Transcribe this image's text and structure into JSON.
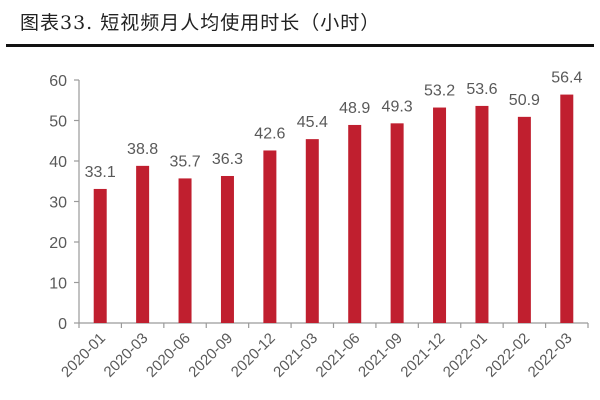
{
  "header": {
    "title": "图表33.  短视频月人均使用时长（小时）"
  },
  "colors": {
    "bar": "#C01F2F",
    "axis": "#9A9A9A",
    "text": "#595959"
  },
  "chart_data": {
    "type": "bar",
    "title": "图表33. 短视频月人均使用时长（小时）",
    "xlabel": "",
    "ylabel": "",
    "ylim": [
      0,
      60
    ],
    "yticks": [
      0,
      10,
      20,
      30,
      40,
      50,
      60
    ],
    "grid": false,
    "legend": null,
    "categories": [
      "2020-01",
      "2020-03",
      "2020-06",
      "2020-09",
      "2020-12",
      "2021-03",
      "2021-06",
      "2021-09",
      "2021-12",
      "2022-01",
      "2022-02",
      "2022-03"
    ],
    "values": [
      33.1,
      38.8,
      35.7,
      36.3,
      42.6,
      45.4,
      48.9,
      49.3,
      53.2,
      53.6,
      50.9,
      56.4
    ],
    "data_labels": [
      "33.1",
      "38.8",
      "35.7",
      "36.3",
      "42.6",
      "45.4",
      "48.9",
      "49.3",
      "53.2",
      "53.6",
      "50.9",
      "56.4"
    ]
  }
}
